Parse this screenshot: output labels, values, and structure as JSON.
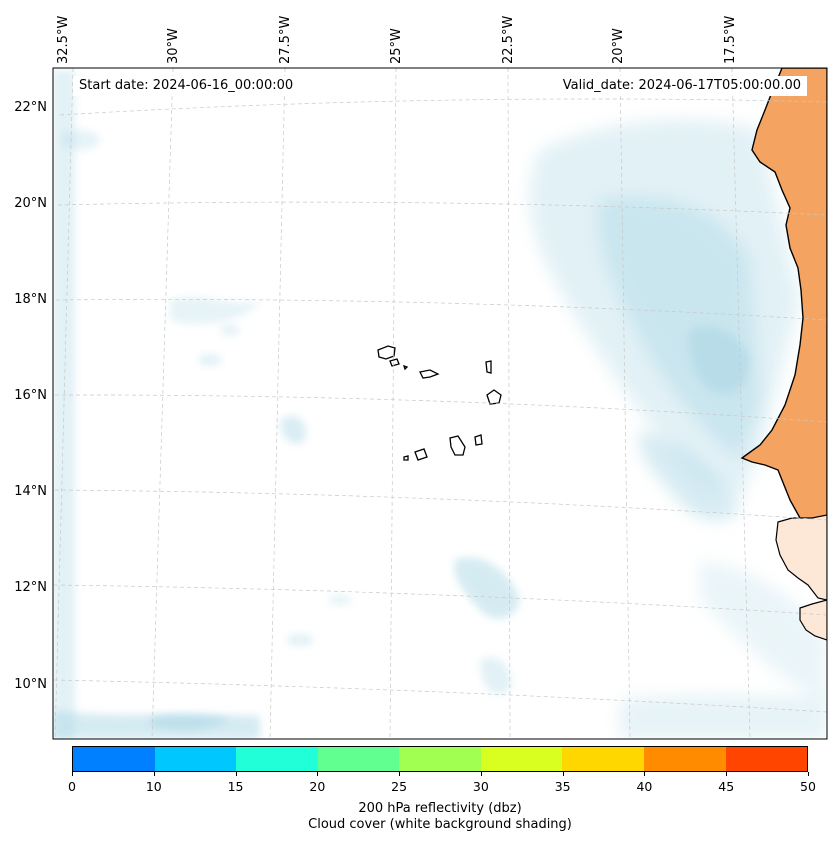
{
  "map": {
    "start_date": "Start date: 2024-06-16_00:00:00",
    "valid_date": "Valid_date: 2024-06-17T05:00:00.00",
    "lon_labels": [
      "32.5°W",
      "30°W",
      "27.5°W",
      "25°W",
      "22.5°W",
      "20°W",
      "17.5°W"
    ],
    "lat_labels": [
      "22°N",
      "20°N",
      "18°N",
      "16°N",
      "14°N",
      "12°N",
      "10°N"
    ],
    "region": "Cape Verde Islands and West African coast",
    "land_color": "#f4a460",
    "coastline_color": "#000000",
    "cloud_color": "#add8e6"
  },
  "colorbar": {
    "title_line1": "200 hPa reflectivity (dbz)",
    "title_line2": "Cloud cover (white background shading)",
    "ticks": [
      "0",
      "10",
      "15",
      "20",
      "25",
      "30",
      "35",
      "40",
      "45",
      "50"
    ],
    "colors": [
      "#0080ff",
      "#00c8ff",
      "#20ffd8",
      "#60ff90",
      "#a0ff50",
      "#d8ff20",
      "#ffd700",
      "#ff8c00",
      "#ff4500"
    ]
  }
}
